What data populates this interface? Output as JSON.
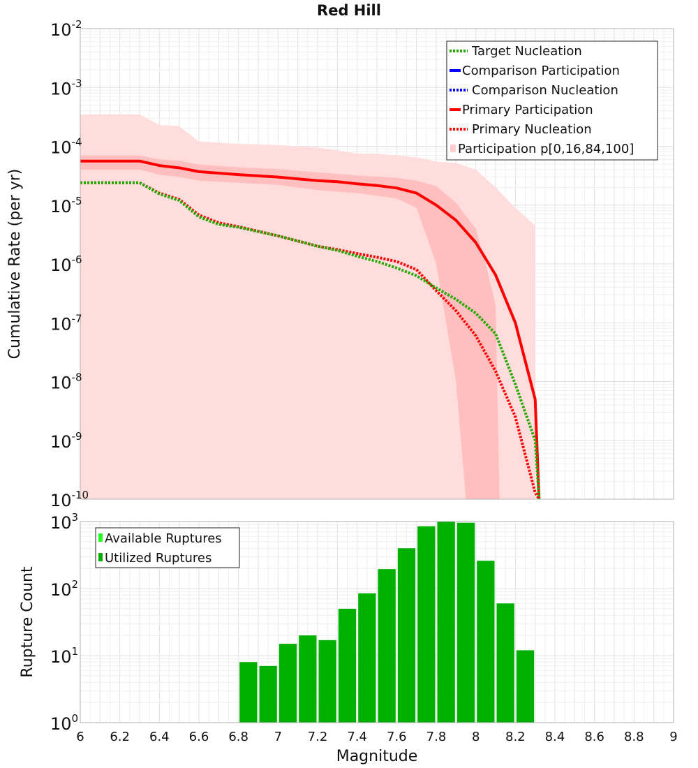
{
  "chart_data": [
    {
      "type": "line",
      "title": "Red Hill",
      "xlabel": "",
      "ylabel": "Cumulative Rate (per yr)",
      "xlim": [
        6,
        9
      ],
      "ylim_log10": [
        -10,
        -2
      ],
      "y_ticks": [
        {
          "base": "10",
          "exp": "-2"
        },
        {
          "base": "10",
          "exp": "-3"
        },
        {
          "base": "10",
          "exp": "-4"
        },
        {
          "base": "10",
          "exp": "-5"
        },
        {
          "base": "10",
          "exp": "-6"
        },
        {
          "base": "10",
          "exp": "-7"
        },
        {
          "base": "10",
          "exp": "-8"
        },
        {
          "base": "10",
          "exp": "-9"
        },
        {
          "base": "10",
          "exp": "-10"
        }
      ],
      "grid": true,
      "legend_position": "top-right",
      "legend": [
        {
          "label": "Target Nucleation",
          "color": "#22aa00",
          "style": "dotted"
        },
        {
          "label": "Comparison Participation",
          "color": "#0000ff",
          "style": "solid"
        },
        {
          "label": "Comparison Nucleation",
          "color": "#0000ff",
          "style": "dotted"
        },
        {
          "label": "Primary Participation",
          "color": "#ff0000",
          "style": "solid"
        },
        {
          "label": "Primary Nucleation",
          "color": "#ff0000",
          "style": "dotted"
        },
        {
          "label": "Participation p[0,16,84,100]",
          "color": "#ffcccc",
          "style": "fill"
        }
      ],
      "series": [
        {
          "name": "Primary Participation",
          "color": "#ff0000",
          "style": "solid",
          "x": [
            6.0,
            6.3,
            6.4,
            6.5,
            6.6,
            6.8,
            7.0,
            7.2,
            7.3,
            7.4,
            7.5,
            7.6,
            7.7,
            7.8,
            7.9,
            8.0,
            8.1,
            8.2,
            8.3,
            8.32
          ],
          "y": [
            5.6e-05,
            5.6e-05,
            4.7e-05,
            4.3e-05,
            3.7e-05,
            3.3e-05,
            3e-05,
            2.6e-05,
            2.5e-05,
            2.3e-05,
            2.15e-05,
            1.95e-05,
            1.6e-05,
            1e-05,
            5.5e-06,
            2.3e-06,
            6.5e-07,
            1e-07,
            5e-09,
            1e-10
          ]
        },
        {
          "name": "Primary Nucleation",
          "color": "#ff0000",
          "style": "dotted",
          "x": [
            6.0,
            6.3,
            6.4,
            6.5,
            6.6,
            6.7,
            6.8,
            7.0,
            7.2,
            7.3,
            7.4,
            7.5,
            7.6,
            7.7,
            7.8,
            7.9,
            8.0,
            8.1,
            8.2,
            8.3,
            8.32
          ],
          "y": [
            2.4e-05,
            2.4e-05,
            1.6e-05,
            1.25e-05,
            6.8e-06,
            5e-06,
            4.3e-06,
            3e-06,
            2e-06,
            1.75e-06,
            1.5e-06,
            1.3e-06,
            1.1e-06,
            8e-07,
            3.5e-07,
            1.6e-07,
            6e-08,
            1.5e-08,
            2.5e-09,
            1.3e-10,
            1e-10
          ]
        },
        {
          "name": "Target Nucleation",
          "color": "#22aa00",
          "style": "dotted",
          "x": [
            6.0,
            6.3,
            6.4,
            6.5,
            6.6,
            6.7,
            6.8,
            7.0,
            7.2,
            7.3,
            7.4,
            7.5,
            7.6,
            7.7,
            7.8,
            7.9,
            8.0,
            8.1,
            8.2,
            8.3,
            8.32
          ],
          "y": [
            2.4e-05,
            2.4e-05,
            1.55e-05,
            1.2e-05,
            6.3e-06,
            4.7e-06,
            4.2e-06,
            3e-06,
            2e-06,
            1.7e-06,
            1.35e-06,
            1.1e-06,
            8.5e-07,
            6.3e-07,
            3.9e-07,
            2.5e-07,
            1.45e-07,
            6.5e-08,
            9e-09,
            1e-09,
            1e-10
          ]
        }
      ],
      "bands": [
        {
          "name": "Participation p0-p100",
          "color": "#ffdddd",
          "x": [
            6.0,
            6.3,
            6.4,
            6.5,
            6.6,
            6.8,
            7.0,
            7.2,
            7.3,
            7.4,
            7.5,
            7.6,
            7.7,
            7.8,
            7.9,
            8.0,
            8.1,
            8.2,
            8.3
          ],
          "upper": [
            0.00035,
            0.00035,
            0.00023,
            0.00022,
            0.00012,
            0.00011,
            0.000105,
            9.5e-05,
            8.5e-05,
            7.5e-05,
            7.5e-05,
            7e-05,
            6.5e-05,
            5.5e-05,
            5.2e-05,
            4e-05,
            2e-05,
            9e-06,
            4.5e-06
          ],
          "lower": [
            1e-10,
            1e-10,
            1e-10,
            1e-10,
            1e-10,
            1e-10,
            1e-10,
            1e-10,
            1e-10,
            1e-10,
            1e-10,
            1e-10,
            1e-10,
            1e-10,
            1e-10,
            1e-10,
            1e-10,
            1e-10,
            1e-10
          ]
        },
        {
          "name": "Participation p16-p84",
          "color": "#ffbfbf",
          "x": [
            6.0,
            6.3,
            6.4,
            6.5,
            6.6,
            6.8,
            7.0,
            7.2,
            7.4,
            7.6,
            7.7,
            7.8,
            7.9,
            7.95,
            8.0,
            8.05,
            8.1,
            8.12
          ],
          "upper": [
            7e-05,
            7e-05,
            6e-05,
            5.7e-05,
            4.9e-05,
            4.4e-05,
            4.1e-05,
            3.6e-05,
            3.2e-05,
            2.9e-05,
            2.6e-05,
            2.1e-05,
            1.1e-05,
            6.5e-06,
            4e-06,
            1e-06,
            2e-07,
            1e-10
          ],
          "lower": [
            4e-05,
            4e-05,
            3.3e-05,
            3e-05,
            2.6e-05,
            2.4e-05,
            2.2e-05,
            1.8e-05,
            1.6e-05,
            1.3e-05,
            9e-06,
            1e-06,
            1e-08,
            1e-10,
            1e-10,
            1e-10,
            1e-10,
            1e-10
          ]
        }
      ]
    },
    {
      "type": "bar",
      "title": "",
      "xlabel": "Magnitude",
      "ylabel": "Rupture Count",
      "xlim": [
        6,
        9
      ],
      "x_ticks": [
        "6",
        "6.2",
        "6.4",
        "6.6",
        "6.8",
        "7",
        "7.2",
        "7.4",
        "7.6",
        "7.8",
        "8",
        "8.2",
        "8.4",
        "8.6",
        "8.8",
        "9"
      ],
      "ylim_log10": [
        0,
        3
      ],
      "y_ticks": [
        {
          "base": "10",
          "exp": "3"
        },
        {
          "base": "10",
          "exp": "2"
        },
        {
          "base": "10",
          "exp": "1"
        },
        {
          "base": "10",
          "exp": "0"
        }
      ],
      "grid": true,
      "legend_position": "top-left",
      "legend": [
        {
          "label": "Available Ruptures",
          "color": "#22ff22"
        },
        {
          "label": "Utilized Ruptures",
          "color": "#00b000"
        }
      ],
      "bin_width": 0.1,
      "bins": [
        6.45,
        6.75,
        6.85,
        6.95,
        7.05,
        7.15,
        7.25,
        7.35,
        7.45,
        7.55,
        7.65,
        7.75,
        7.85,
        7.95,
        8.05,
        8.15,
        8.25
      ],
      "values": [
        1,
        1,
        8,
        7,
        15,
        20,
        17,
        50,
        85,
        195,
        400,
        850,
        1000,
        960,
        260,
        60,
        12
      ],
      "bar_color": "#00b000"
    }
  ]
}
